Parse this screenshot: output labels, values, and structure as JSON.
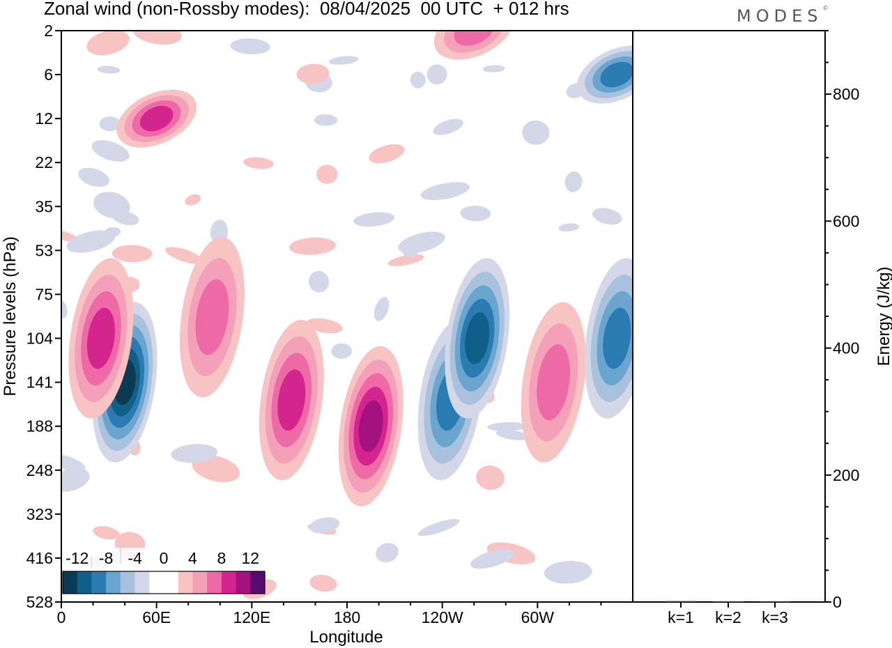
{
  "title": "Zonal wind (non-Rossby modes):  08/04/2025  00 UTC  + 012 hrs",
  "logo_text": "MODES",
  "logo_mark": "©",
  "chart_data": [
    {
      "type": "heatmap",
      "title": "Zonal wind (non-Rossby modes):  08/04/2025  00 UTC  + 012 hrs",
      "xlabel": "Longitude",
      "ylabel": "Pressure levels (hPa)",
      "x_ticks": [
        "0",
        "60E",
        "120E",
        "180",
        "120W",
        "60W"
      ],
      "x_tick_degrees": [
        0,
        60,
        120,
        180,
        240,
        300
      ],
      "x_range_degrees": [
        0,
        360
      ],
      "y_ticks": [
        "2",
        "6",
        "12",
        "22",
        "35",
        "53",
        "75",
        "104",
        "141",
        "188",
        "248",
        "323",
        "416",
        "528"
      ],
      "y_scale": "nonlinear (model pressure levels)",
      "colorbar": {
        "labels": [
          "-12",
          "-8",
          "-4",
          "0",
          "4",
          "8",
          "12"
        ],
        "levels": [
          -14,
          -12,
          -10,
          -8,
          -6,
          -4,
          -2,
          2,
          4,
          6,
          8,
          10,
          12,
          14
        ],
        "colors": [
          "#0b3a52",
          "#0f5f88",
          "#2b7bb3",
          "#6aa5cf",
          "#a8c1dd",
          "#d4d7e8",
          "#ffffff",
          "#ffffff",
          "#f8c3c3",
          "#f5a0b9",
          "#ee6aa6",
          "#d4258f",
          "#a3127f",
          "#560c6c"
        ],
        "placement": "bottom-left inset"
      },
      "features": [
        {
          "lon": 40,
          "level": "141",
          "value": -12
        },
        {
          "lon": 25,
          "level": "104",
          "value": 9
        },
        {
          "lon": 95,
          "level": "90",
          "value": 6
        },
        {
          "lon": 145,
          "level": "160",
          "value": 9
        },
        {
          "lon": 195,
          "level": "188",
          "value": 10
        },
        {
          "lon": 245,
          "level": "160",
          "value": -8
        },
        {
          "lon": 262,
          "level": "104",
          "value": -10
        },
        {
          "lon": 310,
          "level": "141",
          "value": 6
        },
        {
          "lon": 350,
          "level": "104",
          "value": -8
        },
        {
          "lon": 60,
          "level": "12",
          "value": 8
        },
        {
          "lon": 260,
          "level": "2",
          "value": 7
        },
        {
          "lon": 350,
          "level": "6",
          "value": -8
        }
      ]
    },
    {
      "type": "bar",
      "ylabel": "Energy (J/kg)",
      "categories": [
        "k=1",
        "k=2",
        "k=3"
      ],
      "values": [
        1.5,
        1.0,
        0.8
      ],
      "y_ticks": [
        "0",
        "200",
        "400",
        "600",
        "800"
      ],
      "ylim": [
        0,
        900
      ]
    }
  ]
}
